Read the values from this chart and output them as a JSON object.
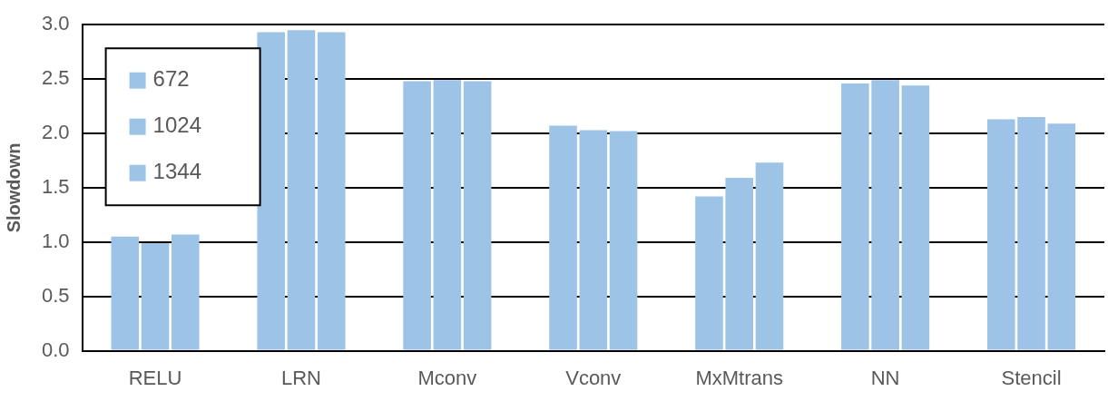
{
  "chart_data": {
    "type": "bar",
    "ylabel": "Slowdown",
    "categories": [
      "RELU",
      "LRN",
      "Mconv",
      "Vconv",
      "MxMtrans",
      "NN",
      "Stencil"
    ],
    "series": [
      {
        "name": "672",
        "color": "#9dc3e6",
        "values": [
          1.05,
          2.93,
          2.48,
          2.07,
          1.42,
          2.46,
          2.13
        ]
      },
      {
        "name": "1024",
        "color": "#9dc3e6",
        "values": [
          0.99,
          2.95,
          2.49,
          2.03,
          1.59,
          2.49,
          2.15
        ]
      },
      {
        "name": "1344",
        "color": "#9dc3e6",
        "values": [
          1.07,
          2.93,
          2.48,
          2.02,
          1.73,
          2.44,
          2.09
        ]
      }
    ],
    "ylim": [
      0,
      3
    ],
    "yticks": [
      {
        "value": 0,
        "label": "0.0"
      },
      0.5,
      {
        "value": 1,
        "label": "1.0"
      },
      1.5,
      {
        "value": 2,
        "label": "2.0"
      },
      2.5,
      {
        "value": 3,
        "label": "3.0"
      }
    ],
    "grid": "y",
    "legend": "top left"
  }
}
